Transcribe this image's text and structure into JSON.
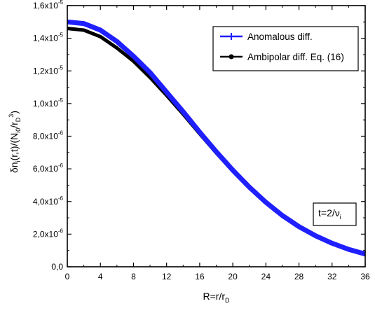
{
  "chart_data": {
    "type": "line",
    "xlabel": {
      "main": "R=r/r",
      "sub": "D"
    },
    "ylabel": {
      "parts": [
        {
          "t": "δn",
          "s": "base"
        },
        {
          "t": "i",
          "s": "sub"
        },
        {
          "t": "(r,t)/(N",
          "s": "base"
        },
        {
          "t": "i0",
          "s": "sub"
        },
        {
          "t": "/r",
          "s": "base"
        },
        {
          "t": "D",
          "s": "sub"
        },
        {
          "t": "3",
          "s": "sup"
        },
        {
          "t": ")",
          "s": "base"
        }
      ]
    },
    "xlim": [
      0,
      36
    ],
    "ylim": [
      0,
      1.6e-05
    ],
    "x_ticks": [
      0,
      4,
      8,
      12,
      16,
      20,
      24,
      28,
      32,
      36
    ],
    "y_ticks": [
      {
        "value": 0,
        "mant": "0,0",
        "exp": ""
      },
      {
        "value": 2e-06,
        "mant": "2,0x10",
        "exp": "-6"
      },
      {
        "value": 4e-06,
        "mant": "4,0x10",
        "exp": "-6"
      },
      {
        "value": 6e-06,
        "mant": "6,0x10",
        "exp": "-6"
      },
      {
        "value": 8e-06,
        "mant": "8,0x10",
        "exp": "-6"
      },
      {
        "value": 1e-05,
        "mant": "1,0x10",
        "exp": "-5"
      },
      {
        "value": 1.2e-05,
        "mant": "1,2x10",
        "exp": "-5"
      },
      {
        "value": 1.4e-05,
        "mant": "1,4x10",
        "exp": "-5"
      },
      {
        "value": 1.6e-05,
        "mant": "1,6x10",
        "exp": "-5"
      }
    ],
    "series": [
      {
        "name": "Ambipolar diff. Eq. (16)",
        "color": "#000000",
        "marker": "circle",
        "x": [
          0,
          2,
          4,
          6,
          8,
          10,
          12,
          14,
          16,
          18,
          20,
          22,
          24,
          26,
          28,
          30,
          32,
          34,
          36
        ],
        "y": [
          1.46e-05,
          1.45e-05,
          1.41e-05,
          1.34e-05,
          1.26e-05,
          1.16e-05,
          1.05e-05,
          9.35e-06,
          8.15e-06,
          6.98e-06,
          5.87e-06,
          4.84e-06,
          3.91e-06,
          3.1e-06,
          2.42e-06,
          1.86e-06,
          1.41e-06,
          1.05e-06,
          7.7e-07
        ]
      },
      {
        "name": "Anomalous diff.",
        "color": "#1f1fff",
        "marker": "plus",
        "x": [
          0,
          2,
          4,
          6,
          8,
          10,
          12,
          14,
          16,
          18,
          20,
          22,
          24,
          26,
          28,
          30,
          32,
          34,
          36
        ],
        "y": [
          1.5e-05,
          1.49e-05,
          1.45e-05,
          1.38e-05,
          1.29e-05,
          1.19e-05,
          1.07e-05,
          9.5e-06,
          8.25e-06,
          7.05e-06,
          5.92e-06,
          4.88e-06,
          3.95e-06,
          3.14e-06,
          2.46e-06,
          1.9e-06,
          1.44e-06,
          1.07e-06,
          7.8e-07
        ]
      }
    ],
    "legend": {
      "position": "top-right",
      "order": [
        "Anomalous diff.",
        "Ambipolar diff. Eq. (16)"
      ]
    },
    "annotation": {
      "main": "t=2/ν",
      "sub": "i"
    }
  }
}
